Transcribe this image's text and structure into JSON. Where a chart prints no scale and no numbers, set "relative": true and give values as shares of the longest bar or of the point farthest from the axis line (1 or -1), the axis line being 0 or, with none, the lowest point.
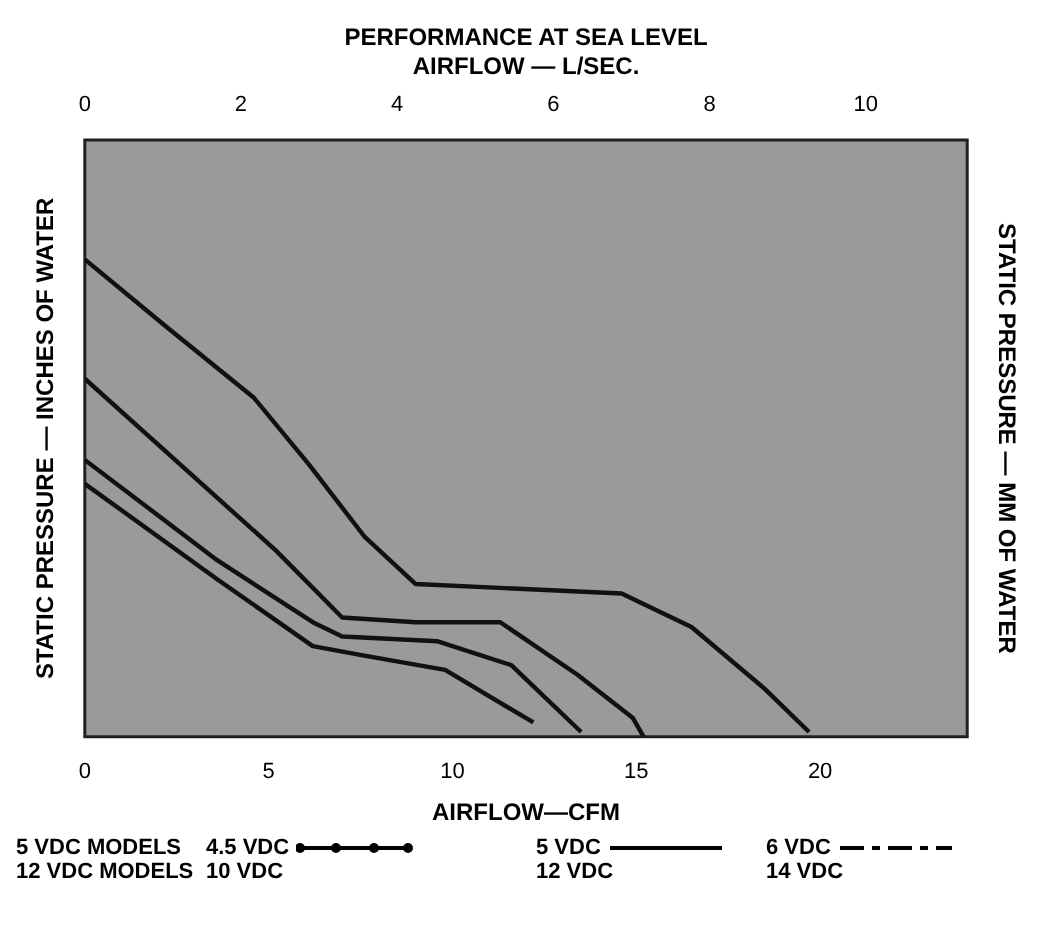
{
  "chart_data": {
    "type": "line",
    "title": "PERFORMANCE AT SEA LEVEL",
    "x2label": "AIRFLOW — L/SEC.",
    "xlabel": "AIRFLOW—CFM",
    "ylabel": "STATIC PRESSURE — INCHES OF WATER",
    "y2label": "STATIC PRESSURE — MM OF WATER",
    "relative": true,
    "xlim": [
      0,
      24
    ],
    "xticks": [
      0,
      5,
      10,
      15,
      20
    ],
    "x2lim": [
      0,
      11.3
    ],
    "x2ticks": [
      0,
      2,
      4,
      6,
      8,
      10
    ],
    "marker": "none",
    "legend": false,
    "series": [
      {
        "color": "#111111",
        "x": [
          0,
          2.2,
          4.6,
          6.1,
          7.6,
          9.0,
          11.8,
          14.6,
          16.5,
          18.5,
          19.7
        ],
        "values": [
          1,
          0.86,
          0.71,
          0.57,
          0.42,
          0.32,
          0.31,
          0.3,
          0.23,
          0.1,
          0.01
        ]
      },
      {
        "color": "#111111",
        "x": [
          0,
          2.6,
          5.2,
          7.0,
          9.0,
          11.3,
          13.4,
          14.9,
          15.2
        ],
        "values": [
          0.75,
          0.57,
          0.39,
          0.25,
          0.24,
          0.24,
          0.13,
          0.04,
          0
        ]
      },
      {
        "color": "#111111",
        "x": [
          0,
          3.6,
          6.2,
          7.0,
          9.6,
          11.6,
          13.5
        ],
        "values": [
          0.58,
          0.37,
          0.24,
          0.21,
          0.2,
          0.15,
          0.01
        ]
      },
      {
        "color": "#111111",
        "x": [
          0,
          3.6,
          6.2,
          7.6,
          9.8,
          12.2
        ],
        "values": [
          0.53,
          0.33,
          0.19,
          0.17,
          0.14,
          0.03
        ]
      }
    ],
    "annotations": [
      "5 VDC MODELS",
      "4.5 VDC",
      "5 VDC",
      "6 VDC",
      "12 VDC MODELS",
      "10 VDC",
      "12 VDC",
      "14 VDC"
    ]
  }
}
